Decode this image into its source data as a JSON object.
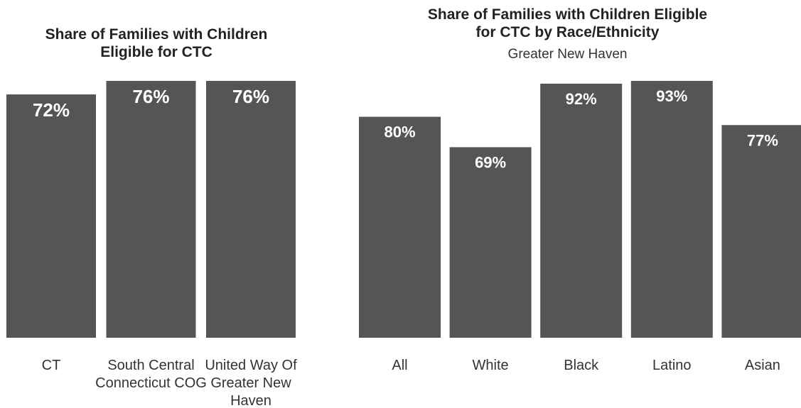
{
  "chart_data": [
    {
      "type": "bar",
      "title": "Share of Families with Children Eligible for CTC",
      "title_lines": [
        "Share of Families with Children",
        "Eligible for CTC"
      ],
      "subtitle": "",
      "categories": [
        "CT",
        "South Central Connecticut COG",
        "United Way Of Greater New Haven"
      ],
      "category_lines": [
        [
          "CT"
        ],
        [
          "South Central",
          "Connecticut COG"
        ],
        [
          "United Way Of",
          "Greater New",
          "Haven"
        ]
      ],
      "values": [
        72,
        76,
        76
      ],
      "data_labels": [
        "72%",
        "76%",
        "76%"
      ],
      "ylim": [
        0,
        76
      ],
      "xlabel": "",
      "ylabel": "",
      "grid": false,
      "bar_color": "#555555"
    },
    {
      "type": "bar",
      "title": "Share of Families with Children Eligible for CTC by Race/Ethnicity",
      "title_lines": [
        "Share of Families with Children Eligible",
        "for CTC by Race/Ethnicity"
      ],
      "subtitle": "Greater New Haven",
      "categories": [
        "All",
        "White",
        "Black",
        "Latino",
        "Asian"
      ],
      "category_lines": [
        [
          "All"
        ],
        [
          "White"
        ],
        [
          "Black"
        ],
        [
          "Latino"
        ],
        [
          "Asian"
        ]
      ],
      "values": [
        80,
        69,
        92,
        93,
        77
      ],
      "data_labels": [
        "80%",
        "69%",
        "92%",
        "93%",
        "77%"
      ],
      "ylim": [
        0,
        93
      ],
      "xlabel": "",
      "ylabel": "",
      "grid": false,
      "bar_color": "#555555"
    }
  ]
}
